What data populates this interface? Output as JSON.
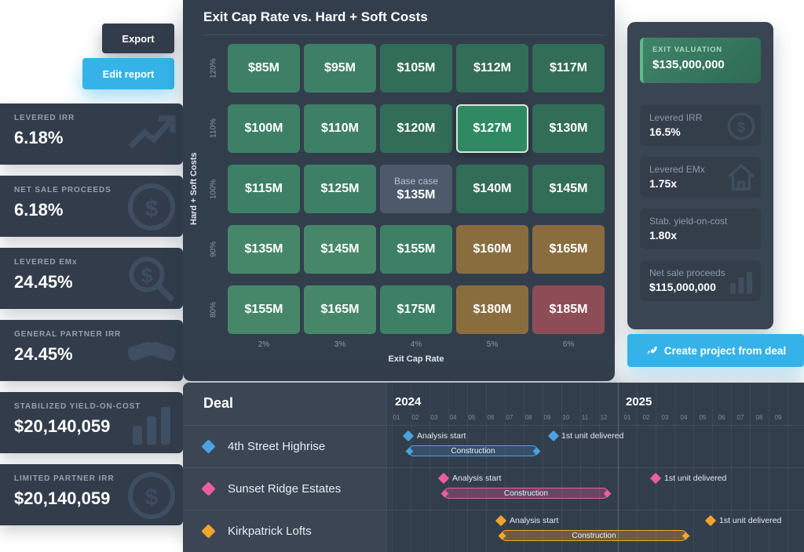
{
  "colors": {
    "accent_cyan": "#35b3e8",
    "panel_dark": "#323c4b",
    "panel_mid": "#333e4d",
    "heatmap_green": "#3d8066",
    "heatmap_green_dark": "#326d57",
    "heatmap_green_light": "#478769",
    "heatmap_gold": "#8a6d3f",
    "heatmap_red": "#8d4d57",
    "base_case_gray": "#4d5a6b",
    "highlight_green": "#2f8a63",
    "exit_valuation_green": "#3f8468",
    "series_blue": "#4aa3e0",
    "series_pink": "#ec5f9e",
    "series_yellow": "#f2a52a"
  },
  "toolbar": {
    "export_label": "Export",
    "edit_report_label": "Edit report"
  },
  "left_metrics": [
    {
      "label": "LEVERED IRR",
      "value": "6.18%",
      "icon": "trend-up-icon"
    },
    {
      "label": "NET SALE PROCEEDS",
      "value": "6.18%",
      "icon": "dollar-circle-icon"
    },
    {
      "label": "LEVERED EMx",
      "value": "24.45%",
      "icon": "magnifier-dollar-icon"
    },
    {
      "label": "GENERAL PARTNER IRR",
      "value": "24.45%",
      "icon": "handshake-icon"
    },
    {
      "label": "STABILIZED YIELD-ON-COST",
      "value": "$20,140,059",
      "icon": "chart-bars-icon"
    },
    {
      "label": "LIMITED PARTNER IRR",
      "value": "$20,140,059",
      "icon": "dollar-circle-icon"
    }
  ],
  "heatmap": {
    "title": "Exit Cap Rate vs. Hard + Soft Costs",
    "x_axis_label": "Exit Cap Rate",
    "y_axis_label": "Hard + Soft Costs",
    "x_ticks": [
      "2%",
      "3%",
      "4%",
      "5%",
      "6%"
    ],
    "y_ticks": [
      "120%",
      "110%",
      "100%",
      "90%",
      "80%"
    ],
    "base_case_label": "Base case",
    "values": [
      [
        "$85M",
        "$95M",
        "$105M",
        "$112M",
        "$117M"
      ],
      [
        "$100M",
        "$110M",
        "$120M",
        "$127M",
        "$130M"
      ],
      [
        "$115M",
        "$125M",
        "$135M",
        "$140M",
        "$145M"
      ],
      [
        "$135M",
        "$145M",
        "$155M",
        "$160M",
        "$165M"
      ],
      [
        "$155M",
        "$165M",
        "$175M",
        "$180M",
        "$185M"
      ]
    ]
  },
  "summary": {
    "exit_valuation_label": "EXIT VALUATION",
    "exit_valuation_value": "$135,000,000",
    "cards": [
      {
        "label": "Levered IRR",
        "value": "16.5%",
        "icon": "dollar-circle-icon"
      },
      {
        "label": "Levered EMx",
        "value": "1.75x",
        "icon": "house-up-icon"
      },
      {
        "label": "Stab. yield-on-cost",
        "value": "1.80x",
        "icon": "none"
      },
      {
        "label": "Net sale proceeds",
        "value": "$115,000,000",
        "icon": "chart-bars-icon"
      }
    ],
    "create_button_label": "Create project from deal"
  },
  "gantt": {
    "deal_header": "Deal",
    "years": [
      "2024",
      "2025"
    ],
    "months_2024": [
      "01",
      "02",
      "03",
      "04",
      "05",
      "06",
      "07",
      "08",
      "09",
      "10",
      "11",
      "12"
    ],
    "months_2025": [
      "01",
      "02",
      "03",
      "04",
      "05",
      "06",
      "07",
      "08",
      "09"
    ],
    "rows": [
      {
        "name": "4th Street Highrise",
        "color": "#4aa3e0",
        "analysis_label": "Analysis start",
        "construction_label": "Construction",
        "delivered_label": "1st unit delivered",
        "construction_start": "2024-02",
        "construction_end": "2024-08",
        "delivered": "2024-09"
      },
      {
        "name": "Sunset Ridge Estates",
        "color": "#ec5f9e",
        "analysis_label": "Analysis start",
        "construction_label": "Construction",
        "delivered_label": "1st unit delivered",
        "construction_start": "2024-04",
        "construction_end": "2024-12",
        "delivered": "2025-02"
      },
      {
        "name": "Kirkpatrick Lofts",
        "color": "#f2a52a",
        "analysis_label": "Analysis start",
        "construction_label": "Construction",
        "delivered_label": "1st unit delivered",
        "construction_start": "2024-07",
        "construction_end": "2025-04",
        "delivered": "2025-06"
      }
    ]
  },
  "chart_data": {
    "type": "heatmap",
    "title": "Exit Cap Rate vs. Hard + Soft Costs",
    "xlabel": "Exit Cap Rate",
    "ylabel": "Hard + Soft Costs",
    "x_categories": [
      "2%",
      "3%",
      "4%",
      "5%",
      "6%"
    ],
    "y_categories": [
      "120%",
      "110%",
      "100%",
      "90%",
      "80%"
    ],
    "unit": "$M",
    "values": [
      [
        85,
        95,
        105,
        112,
        117
      ],
      [
        100,
        110,
        120,
        127,
        130
      ],
      [
        115,
        125,
        135,
        140,
        145
      ],
      [
        135,
        145,
        155,
        160,
        165
      ],
      [
        155,
        165,
        175,
        180,
        185
      ]
    ],
    "base_case": {
      "y": "100%",
      "x": "4%",
      "value": 135
    },
    "selected": {
      "y": "110%",
      "x": "5%",
      "value": 127
    }
  }
}
